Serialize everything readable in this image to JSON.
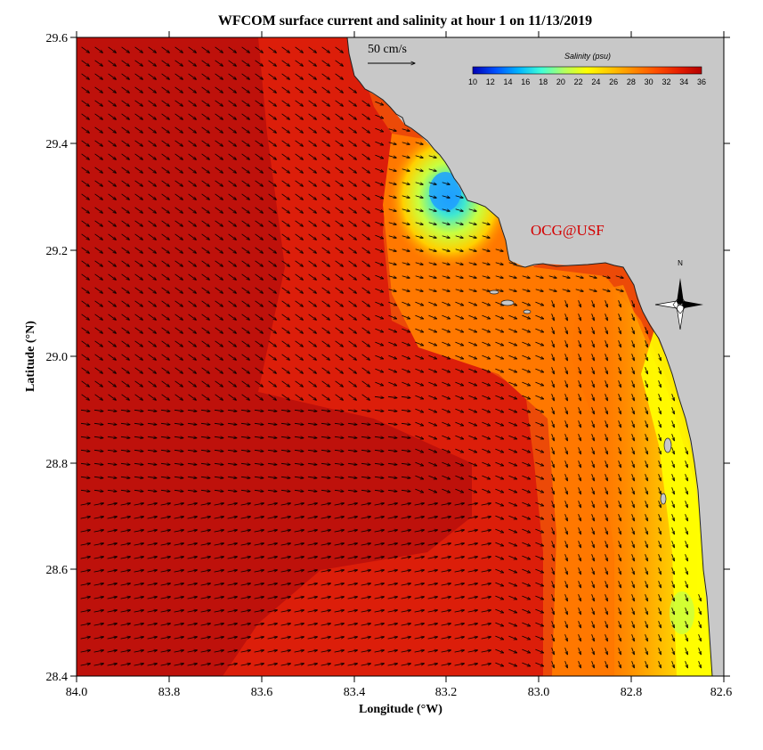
{
  "title": "WFCOM surface current and salinity at hour 1 on 11/13/2019",
  "x_axis": {
    "label": "Longitude (°W)",
    "ticks": [
      "84.0",
      "83.8",
      "83.6",
      "83.4",
      "83.2",
      "83.0",
      "82.8",
      "82.6"
    ]
  },
  "y_axis": {
    "label": "Latitude (°N)",
    "ticks": [
      "29.6",
      "29.4",
      "29.2",
      "29.0",
      "28.8",
      "28.6",
      "28.4"
    ]
  },
  "scale_arrow": {
    "label": "50 cm/s"
  },
  "colorbar": {
    "title": "Salinity (psu)",
    "ticks": [
      "10",
      "12",
      "14",
      "16",
      "18",
      "20",
      "22",
      "24",
      "26",
      "28",
      "30",
      "32",
      "34",
      "36"
    ],
    "colors": [
      "#0000b4",
      "#0050ff",
      "#00b4ff",
      "#40ffd8",
      "#b4ff60",
      "#ffff00",
      "#ffc800",
      "#ff8c00",
      "#ff5000",
      "#e61e00",
      "#b40000"
    ]
  },
  "watermark": "OCG@USF",
  "north_arrow": {
    "label": "N"
  },
  "colors": {
    "land": "#c8c8c8",
    "sea_high_salinity": "#dc1e0a",
    "sea_max_salinity": "#b40a0a",
    "coastal_low": "#ffff00",
    "plume_core": "#1ea0ff"
  },
  "chart_data": {
    "type": "heatmap",
    "variable": "surface salinity (psu) with current vectors",
    "xlim_lon_W": [
      84.0,
      82.6
    ],
    "ylim_lat_N": [
      28.4,
      29.6
    ],
    "salinity_range": [
      10,
      36
    ],
    "current_scale_cm_s": 50
  }
}
